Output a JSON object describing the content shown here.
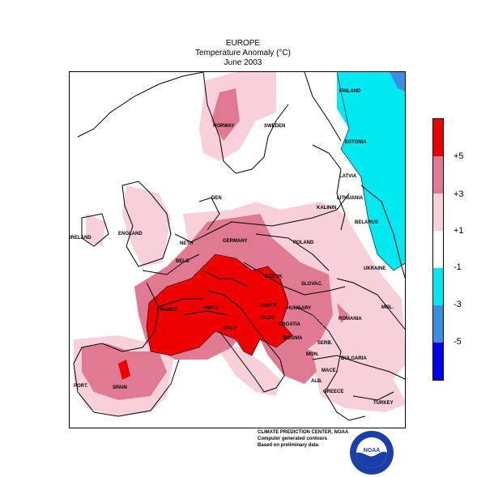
{
  "title": {
    "line1": "EUROPE",
    "line2": "Temperature Anomaly (°C)",
    "line3": "June 2003"
  },
  "legend": {
    "labels": [
      "+5",
      "+3",
      "+1",
      "-1",
      "-3",
      "-5"
    ],
    "colors": [
      "#ee0000",
      "#e07a92",
      "#f8d0da",
      "#ffffff",
      "#00e8f0",
      "#3a8fe0",
      "#0000ee"
    ]
  },
  "map": {
    "labels": {
      "finland": "FINLAND",
      "norway": "NORWAY",
      "sweden": "SWEDEN",
      "estonia": "ESTONIA",
      "latvia": "LATVIA",
      "lithuania": "LITHUANIA",
      "kaliningrad": "KALININ.",
      "belarus": "BELARUS",
      "denmark": "DEN",
      "ireland": "IRELAND",
      "england": "ENGLAND",
      "germany": "GERMANY",
      "netherlands": "NETH",
      "belgium": "BELG",
      "poland": "POLAND",
      "ukraine": "UKRAINE",
      "czech": "CZECH.",
      "slovakia": "SLOVAC.",
      "france": "FRANCE",
      "switzerland": "SWITZ.",
      "austria": "AUSTR.",
      "hungary": "HUNGARY",
      "moldova": "MOL.",
      "romania": "ROMANIA",
      "slovenia": "SLOV.",
      "croatia": "CROATIA",
      "bosnia": "BOSNIA",
      "serbia": "SERB.",
      "italy": "ITALY",
      "montenegro": "MON.",
      "bulgaria": "BULGARIA",
      "macedonia": "MACE.",
      "albania": "ALB.",
      "greece": "GREECE",
      "turkey": "TURKEY",
      "portugal": "PORT.",
      "spain": "SPAIN"
    }
  },
  "credits": {
    "line1": "CLIMATE PREDICTION CENTER, NOAA",
    "line2": "Computer generated contours",
    "line3": "Based on preliminary data"
  },
  "logo": {
    "text": "NOAA"
  }
}
